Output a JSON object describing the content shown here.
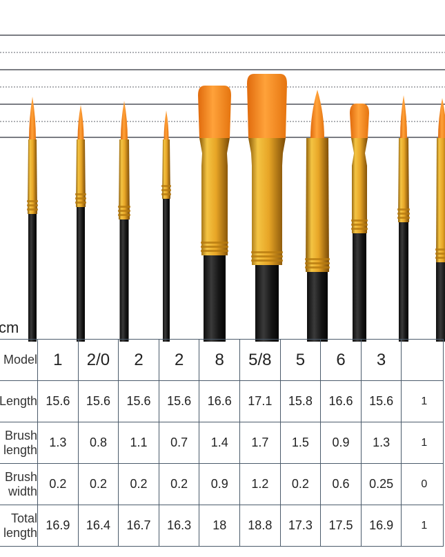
{
  "unit_label": "cm",
  "row_headers": [
    [
      "Model"
    ],
    [
      "Length"
    ],
    [
      "Brush",
      "length"
    ],
    [
      "Brush",
      "width"
    ],
    [
      "Total",
      "length"
    ]
  ],
  "columns": [
    {
      "model": "1",
      "length": "15.6",
      "brush_length": "1.3",
      "brush_width": "0.2",
      "total": "16.9"
    },
    {
      "model": "2/0",
      "length": "15.6",
      "brush_length": "0.8",
      "brush_width": "0.2",
      "total": "16.4"
    },
    {
      "model": "2",
      "length": "15.6",
      "brush_length": "1.1",
      "brush_width": "0.2",
      "total": "16.7"
    },
    {
      "model": "2",
      "length": "15.6",
      "brush_length": "0.7",
      "brush_width": "0.2",
      "total": "16.3"
    },
    {
      "model": "8",
      "length": "16.6",
      "brush_length": "1.4",
      "brush_width": "0.9",
      "total": "18"
    },
    {
      "model": "5/8",
      "length": "17.1",
      "brush_length": "1.7",
      "brush_width": "1.2",
      "total": "18.8"
    },
    {
      "model": "5",
      "length": "15.8",
      "brush_length": "1.5",
      "brush_width": "0.2",
      "total": "17.3"
    },
    {
      "model": "6",
      "length": "16.6",
      "brush_length": "0.9",
      "brush_width": "0.6",
      "total": "17.5"
    },
    {
      "model": "3",
      "length": "15.6",
      "brush_length": "1.3",
      "brush_width": "0.25",
      "total": "16.9"
    },
    {
      "model": "",
      "length": "1",
      "brush_length": "1",
      "brush_width": "0",
      "total": "1"
    }
  ],
  "colors": {
    "bristle": "#f07d14",
    "ferrule": "#d99a1e",
    "handle": "#1c1c1c",
    "grid": "#4a5a6a",
    "ruler": "#2a2f38"
  }
}
